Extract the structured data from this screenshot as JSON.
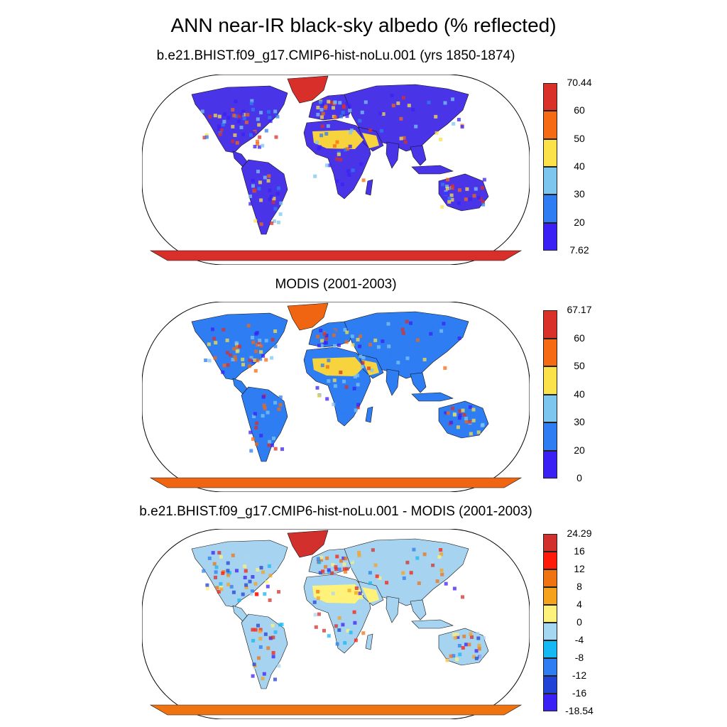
{
  "title": "ANN near-IR black-sky albedo (% reflected)",
  "panels": [
    {
      "title": "b.e21.BHIST.f09_g17.CMIP6-hist-noLu.001 (yrs 1850-1874)",
      "colorbar": {
        "labels": [
          "70.44",
          "60",
          "50",
          "40",
          "30",
          "20",
          "7.62"
        ],
        "colors": [
          "#3b20f5",
          "#2e7df2",
          "#7dc6f0",
          "#fbe14a",
          "#f56a12",
          "#d9302a"
        ]
      },
      "map_fill": {
        "land": "#4a34e8",
        "ocean": "#ffffff",
        "antarctica": "#d92f2a",
        "greenland": "#d92f2a",
        "desert": "#f7d33d"
      }
    },
    {
      "title": "MODIS (2001-2003)",
      "colorbar": {
        "labels": [
          "67.17",
          "60",
          "50",
          "40",
          "30",
          "20",
          "0"
        ],
        "colors": [
          "#3b20f5",
          "#2e7df2",
          "#7dc6f0",
          "#fbe14a",
          "#f56a12",
          "#d9302a"
        ]
      },
      "map_fill": {
        "land": "#2e7df2",
        "ocean": "#ffffff",
        "antarctica": "#f06512",
        "greenland": "#f06512",
        "desert": "#f7d33d"
      }
    },
    {
      "title": "b.e21.BHIST.f09_g17.CMIP6-hist-noLu.001 - MODIS (2001-2003)",
      "colorbar": {
        "labels": [
          "24.29",
          "16",
          "12",
          "8",
          "4",
          "0",
          "-4",
          "-8",
          "-12",
          "-16",
          "-18.54"
        ],
        "colors": [
          "#3b20f5",
          "#2142d6",
          "#2e7df2",
          "#14b8f5",
          "#a6d7f2",
          "#fff27a",
          "#f7a21c",
          "#f07312",
          "#ff1a0a",
          "#d1302c"
        ]
      },
      "map_fill": {
        "land": "#a6d3f0",
        "ocean": "#ffffff",
        "antarctica": "#f07312",
        "greenland": "#d1302c",
        "desert": "#fff27a"
      }
    }
  ]
}
